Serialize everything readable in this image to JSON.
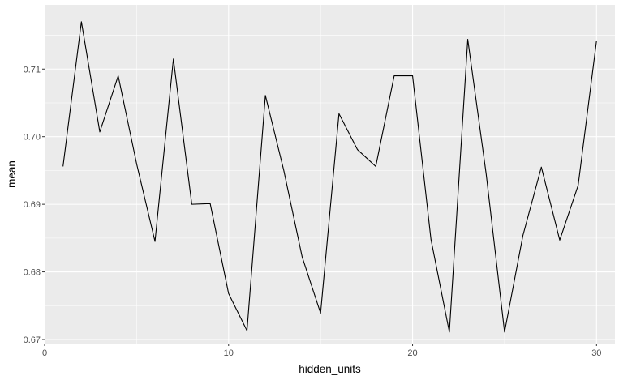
{
  "chart_data": {
    "type": "line",
    "title": "",
    "xlabel": "hidden_units",
    "ylabel": "mean",
    "xlim": [
      0,
      31
    ],
    "ylim": [
      0.6694,
      0.7195
    ],
    "x_ticks": [
      0,
      10,
      20,
      30
    ],
    "y_ticks": [
      0.67,
      0.68,
      0.69,
      0.7,
      0.71
    ],
    "x_tick_labels": [
      "0",
      "10",
      "20",
      "30"
    ],
    "y_tick_labels": [
      "0.67",
      "0.68",
      "0.69",
      "0.70",
      "0.71"
    ],
    "grid": true,
    "background": "#ebebeb",
    "grid_major_color": "#ffffff",
    "line_color": "#000000",
    "series": [
      {
        "x": [
          1,
          2,
          3,
          4,
          5,
          6,
          7,
          8,
          9,
          10,
          11,
          12,
          13,
          14,
          15,
          16,
          17,
          18,
          19,
          20,
          21,
          22,
          23,
          24,
          25,
          26,
          27,
          28,
          29,
          30
        ],
        "values": [
          0.6956,
          0.717,
          0.7007,
          0.709,
          0.696,
          0.6845,
          0.7115,
          0.69,
          0.6901,
          0.6768,
          0.6713,
          0.7061,
          0.695,
          0.6822,
          0.6739,
          0.7034,
          0.6981,
          0.6956,
          0.709,
          0.709,
          0.6848,
          0.6711,
          0.7144,
          0.6945,
          0.6711,
          0.6854,
          0.6955,
          0.6847,
          0.6928,
          0.7142
        ]
      }
    ]
  }
}
